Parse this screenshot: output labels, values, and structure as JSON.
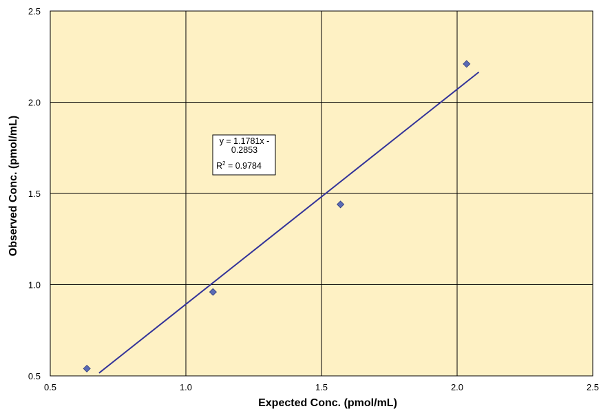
{
  "chart_data": {
    "type": "scatter",
    "title": "",
    "xlabel": "Expected Conc. (pmol/mL)",
    "ylabel": "Observed Conc. (pmol/mL)",
    "xlim": [
      0.5,
      2.5
    ],
    "ylim": [
      0.5,
      2.5
    ],
    "x_ticks": [
      0.5,
      1.0,
      1.5,
      2.0,
      2.5
    ],
    "y_ticks": [
      0.5,
      1.0,
      1.5,
      2.0,
      2.5
    ],
    "x_tick_labels": [
      "0.5",
      "1.0",
      "1.5",
      "2.0",
      "2.5"
    ],
    "y_tick_labels": [
      "0.5",
      "1.0",
      "1.5",
      "2.0",
      "2.5"
    ],
    "grid": true,
    "legend": "none",
    "plot_background": "#FEF1C4",
    "grid_color": "#000000",
    "marker_color": "#5A6BB5",
    "marker_shape": "diamond",
    "trendline_color": "#333399",
    "series": [
      {
        "x": [
          0.635,
          1.1,
          1.57,
          2.035
        ],
        "y": [
          0.54,
          0.96,
          1.44,
          2.21
        ]
      }
    ],
    "trendline": {
      "slope": 1.1781,
      "intercept": -0.2853,
      "x_range": [
        0.68,
        2.08
      ]
    },
    "annotation": {
      "equation_line1": "y = 1.1781x -",
      "equation_line2": "0.2853",
      "r2_prefix": "R",
      "r2_sup": "2",
      "r2_value": " = 0.9784"
    }
  }
}
